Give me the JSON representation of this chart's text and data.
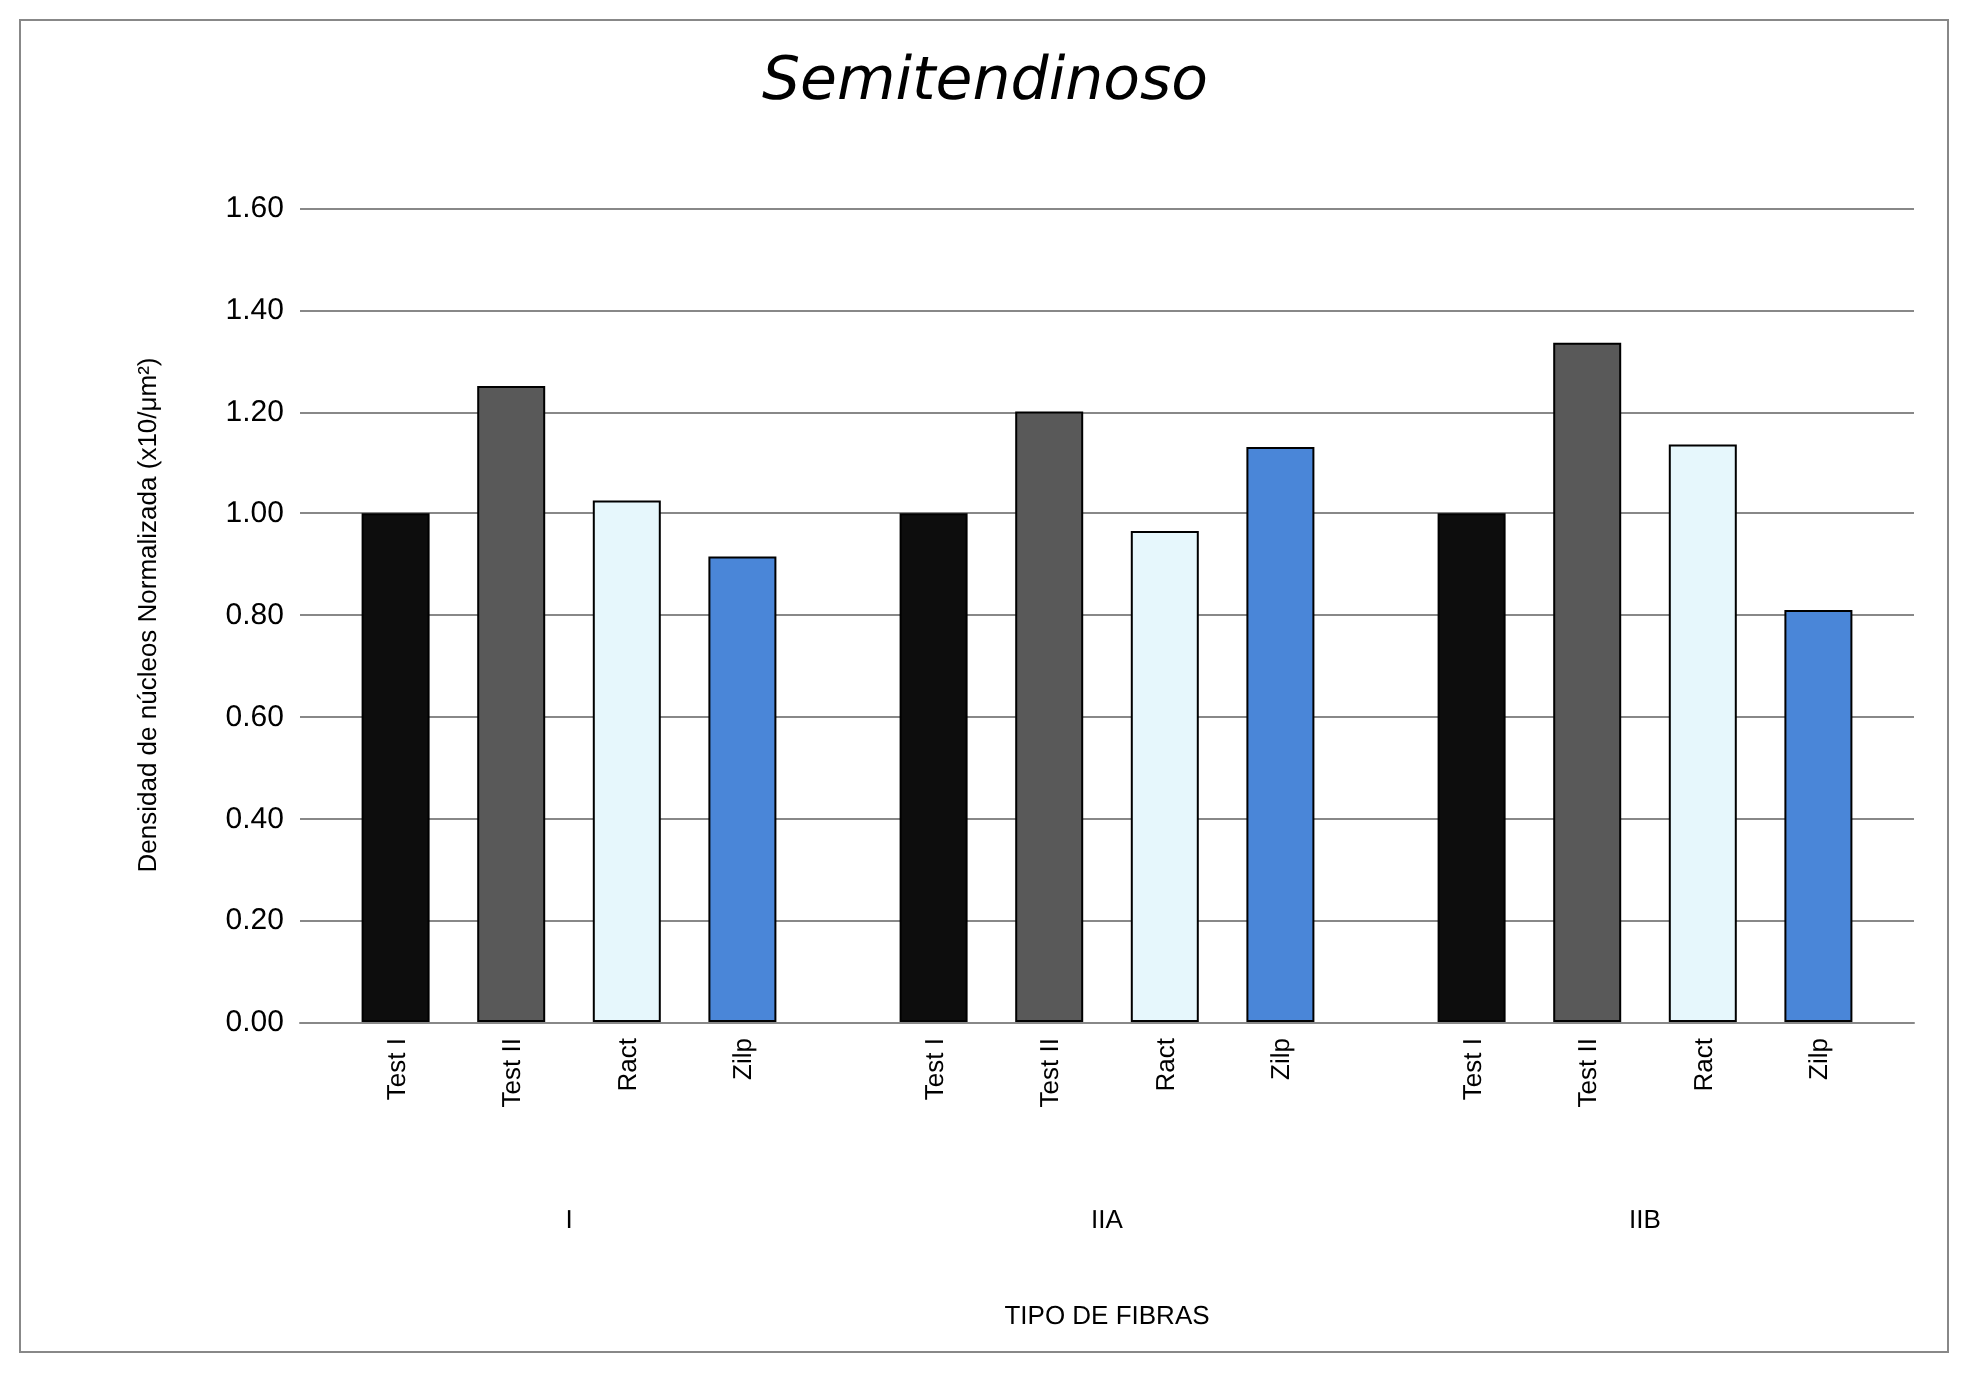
{
  "chart_data": {
    "type": "bar",
    "title": "Semitendinoso",
    "xlabel": "TIPO DE FIBRAS",
    "ylabel": "Densidad de núcleos Normalizada (x10/μm²)",
    "categories": [
      "I",
      "IIA",
      "IIB"
    ],
    "series": [
      {
        "name": "Test I",
        "color": "#0d0d0d",
        "values": [
          1.0,
          1.0,
          1.0
        ]
      },
      {
        "name": "Test II",
        "color": "#595959",
        "values": [
          1.25,
          1.2,
          1.335
        ]
      },
      {
        "name": "Ract",
        "color": "#e6f7fc",
        "values": [
          1.025,
          0.965,
          1.135
        ]
      },
      {
        "name": "Zilp",
        "color": "#4a86d8",
        "values": [
          0.915,
          1.13,
          0.81
        ]
      }
    ],
    "ylim": [
      0,
      1.6
    ],
    "yticks": [
      {
        "value": 0,
        "label": "0.00"
      },
      {
        "value": 0.2,
        "label": "0.20"
      },
      {
        "value": 0.4,
        "label": "0.40"
      },
      {
        "value": 0.6,
        "label": "0.60"
      },
      {
        "value": 0.8,
        "label": "0.80"
      },
      {
        "value": 1.0,
        "label": "1.00"
      },
      {
        "value": 1.2,
        "label": "1.20"
      },
      {
        "value": 1.4,
        "label": "1.40"
      },
      {
        "value": 1.6,
        "label": "1.60"
      }
    ],
    "grid": "y",
    "legend": false
  }
}
